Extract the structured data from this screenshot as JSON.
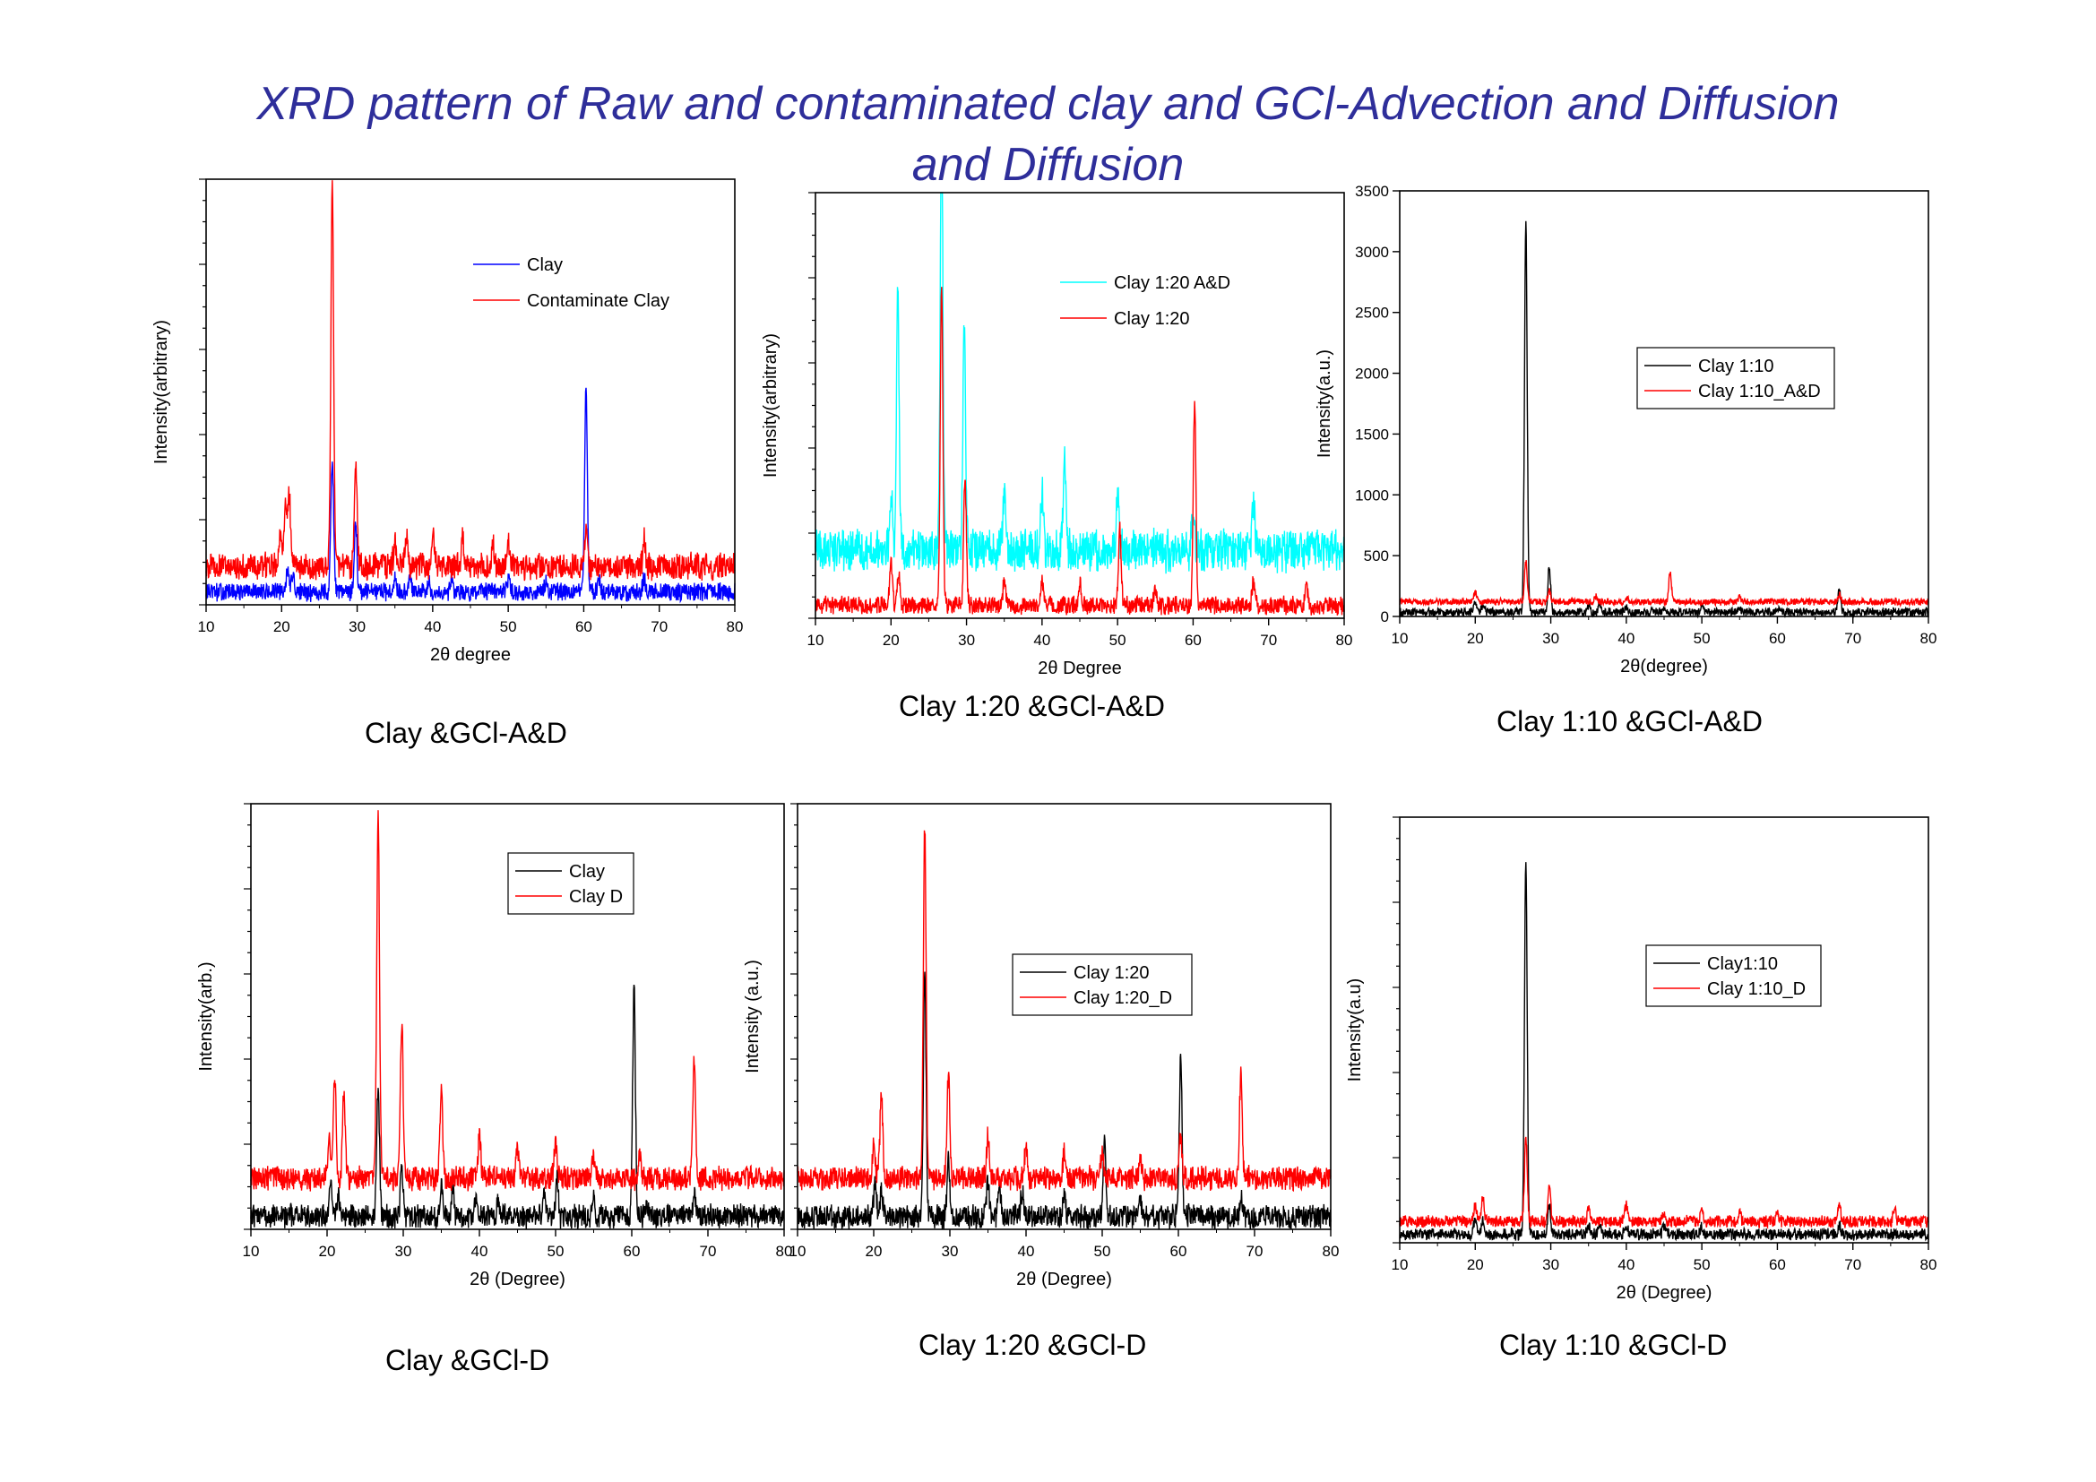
{
  "page": {
    "title_line1": "XRD  pattern of  Raw and contaminated clay and GCl-Advection and Diffusion",
    "title_line2": "and Diffusion"
  },
  "captions": {
    "c1": "Clay &GCl-A&D",
    "c2": "Clay 1:20 &GCl-A&D",
    "c3": "Clay 1:10 &GCl-A&D",
    "c4": "Clay &GCl-D",
    "c5": "Clay 1:20 &GCl-D",
    "c6": "Clay 1:10 &GCl-D"
  },
  "chart_data": [
    {
      "type": "line",
      "xlabel": "2θ degree",
      "ylabel": "Intensity(arbitrary)",
      "xlim": [
        10,
        80
      ],
      "xticks": [
        "10",
        "20",
        "30",
        "40",
        "50",
        "60",
        "70",
        "80"
      ],
      "ylim": [
        0,
        100
      ],
      "yticks_labeled": false,
      "legend_placement": "top-center",
      "legend_box": false,
      "series": [
        {
          "name": "Clay",
          "color": "#0000ff",
          "baseline": 3,
          "noise": 1.5,
          "peaks": [
            [
              20.8,
              6
            ],
            [
              21.5,
              4
            ],
            [
              26.7,
              32
            ],
            [
              29.8,
              16
            ],
            [
              35,
              4
            ],
            [
              37,
              3
            ],
            [
              39.5,
              3
            ],
            [
              42.5,
              3
            ],
            [
              50,
              3
            ],
            [
              55,
              2
            ],
            [
              60.3,
              47
            ],
            [
              62,
              3
            ],
            [
              68,
              3
            ]
          ]
        },
        {
          "name": "Contaminate Clay",
          "color": "#ff0000",
          "baseline": 9,
          "noise": 2.2,
          "peaks": [
            [
              19.8,
              8
            ],
            [
              20.5,
              15
            ],
            [
              21,
              17
            ],
            [
              26.7,
              92
            ],
            [
              29.8,
              25
            ],
            [
              35,
              6
            ],
            [
              36.5,
              7
            ],
            [
              40,
              8
            ],
            [
              44,
              6
            ],
            [
              48,
              5
            ],
            [
              50,
              6
            ],
            [
              60.3,
              8
            ],
            [
              68,
              6
            ]
          ]
        }
      ]
    },
    {
      "type": "line",
      "xlabel": "2θ Degree",
      "ylabel": "Intensity(arbitrary)",
      "xlim": [
        10,
        80
      ],
      "xticks": [
        "10",
        "20",
        "30",
        "40",
        "50",
        "60",
        "70",
        "80"
      ],
      "ylim": [
        0,
        100
      ],
      "yticks_labeled": false,
      "legend_placement": "top-center",
      "legend_box": false,
      "series": [
        {
          "name": "Clay 1:20 A&D",
          "color": "#00ffff",
          "baseline": 16,
          "noise": 3.5,
          "peaks": [
            [
              20,
              14
            ],
            [
              20.9,
              60
            ],
            [
              26.7,
              98
            ],
            [
              29.7,
              52
            ],
            [
              35,
              14
            ],
            [
              40,
              14
            ],
            [
              43,
              20
            ],
            [
              50,
              12
            ],
            [
              60,
              10
            ],
            [
              68,
              10
            ]
          ]
        },
        {
          "name": "Clay 1:20",
          "color": "#ff0000",
          "baseline": 3,
          "noise": 1.5,
          "peaks": [
            [
              20,
              10
            ],
            [
              21,
              8
            ],
            [
              26.7,
              74
            ],
            [
              29.8,
              30
            ],
            [
              35,
              6
            ],
            [
              40,
              6
            ],
            [
              45,
              5
            ],
            [
              50.3,
              18
            ],
            [
              55,
              4
            ],
            [
              60.2,
              48
            ],
            [
              68,
              6
            ],
            [
              75,
              4
            ]
          ]
        }
      ]
    },
    {
      "type": "line",
      "xlabel": "2θ(degree)",
      "ylabel": "Intensity(a.u.)",
      "xlim": [
        10,
        80
      ],
      "xticks": [
        "10",
        "20",
        "30",
        "40",
        "50",
        "60",
        "70",
        "80"
      ],
      "ylim": [
        0,
        3500
      ],
      "yticks": [
        0,
        500,
        1000,
        1500,
        2000,
        2500,
        3000,
        3500
      ],
      "yticks_labeled": true,
      "legend_placement": "top-right",
      "legend_box": true,
      "series": [
        {
          "name": "Clay 1:10",
          "color": "#000000",
          "baseline": 35,
          "noise": 25,
          "peaks": [
            [
              20,
              90
            ],
            [
              21,
              60
            ],
            [
              26.7,
              3190
            ],
            [
              29.8,
              370
            ],
            [
              35,
              60
            ],
            [
              36.5,
              70
            ],
            [
              40,
              50
            ],
            [
              45,
              40
            ],
            [
              50,
              40
            ],
            [
              55,
              40
            ],
            [
              60,
              40
            ],
            [
              68.2,
              180
            ]
          ]
        },
        {
          "name": "Clay 1:10_A&D",
          "color": "#ff0000",
          "baseline": 120,
          "noise": 20,
          "peaks": [
            [
              20,
              80
            ],
            [
              26.7,
              340
            ],
            [
              29.8,
              100
            ],
            [
              36,
              40
            ],
            [
              40,
              40
            ],
            [
              45.8,
              240
            ],
            [
              55,
              40
            ],
            [
              68.2,
              60
            ]
          ]
        }
      ]
    },
    {
      "type": "line",
      "xlabel": "2θ (Degree)",
      "ylabel": "Intensity(arb.)",
      "xlim": [
        10,
        80
      ],
      "xticks": [
        "10",
        "20",
        "30",
        "40",
        "50",
        "60",
        "70",
        "80"
      ],
      "ylim": [
        0,
        100
      ],
      "yticks_labeled": false,
      "legend_placement": "top-center",
      "legend_box": true,
      "series": [
        {
          "name": "Clay",
          "color": "#000000",
          "baseline": 3,
          "noise": 2,
          "peaks": [
            [
              20.5,
              9
            ],
            [
              21.5,
              5
            ],
            [
              26.7,
              31
            ],
            [
              29.8,
              12
            ],
            [
              35,
              7
            ],
            [
              36.5,
              6
            ],
            [
              39.5,
              5
            ],
            [
              42.5,
              4
            ],
            [
              48.5,
              5
            ],
            [
              50.2,
              8
            ],
            [
              55,
              4
            ],
            [
              60.3,
              54
            ],
            [
              62,
              3
            ],
            [
              68.2,
              5
            ]
          ]
        },
        {
          "name": "Clay D",
          "color": "#ff0000",
          "baseline": 12,
          "noise": 2,
          "peaks": [
            [
              20.3,
              8
            ],
            [
              21,
              24
            ],
            [
              22.2,
              20
            ],
            [
              26.7,
              86
            ],
            [
              29.8,
              37
            ],
            [
              35,
              20
            ],
            [
              40,
              10
            ],
            [
              45,
              7
            ],
            [
              50,
              8
            ],
            [
              55,
              6
            ],
            [
              61,
              5
            ],
            [
              68.2,
              28
            ]
          ]
        }
      ]
    },
    {
      "type": "line",
      "xlabel": "2θ (Degree)",
      "ylabel": "Intensity (a.u.)",
      "xlim": [
        10,
        80
      ],
      "xticks": [
        "10",
        "20",
        "30",
        "40",
        "50",
        "60",
        "70",
        "80"
      ],
      "ylim": [
        0,
        100
      ],
      "yticks_labeled": false,
      "legend_placement": "top-center",
      "legend_box": true,
      "series": [
        {
          "name": "Clay 1:20",
          "color": "#000000",
          "baseline": 3,
          "noise": 2,
          "peaks": [
            [
              20.2,
              8
            ],
            [
              21,
              6
            ],
            [
              26.7,
              56
            ],
            [
              29.8,
              14
            ],
            [
              35,
              8
            ],
            [
              36.5,
              7
            ],
            [
              39.5,
              6
            ],
            [
              45,
              5
            ],
            [
              50.3,
              19
            ],
            [
              55,
              5
            ],
            [
              60.3,
              38
            ],
            [
              68.2,
              5
            ]
          ]
        },
        {
          "name": "Clay 1:20_D",
          "color": "#ff0000",
          "baseline": 12,
          "noise": 2,
          "peaks": [
            [
              20,
              8
            ],
            [
              21,
              20
            ],
            [
              26.7,
              83
            ],
            [
              29.8,
              25
            ],
            [
              35,
              10
            ],
            [
              40,
              8
            ],
            [
              45,
              6
            ],
            [
              50,
              6
            ],
            [
              55,
              5
            ],
            [
              60.3,
              10
            ],
            [
              68.2,
              24
            ]
          ]
        }
      ]
    },
    {
      "type": "line",
      "xlabel": "2θ (Degree)",
      "ylabel": "Intensity(a.u)",
      "xlim": [
        10,
        80
      ],
      "xticks": [
        "10",
        "20",
        "30",
        "40",
        "50",
        "60",
        "70",
        "80"
      ],
      "ylim": [
        0,
        100
      ],
      "yticks_labeled": false,
      "legend_placement": "top-right",
      "legend_box": true,
      "series": [
        {
          "name": "Clay1:10",
          "color": "#000000",
          "baseline": 2,
          "noise": 1,
          "peaks": [
            [
              20,
              4
            ],
            [
              21,
              3
            ],
            [
              26.7,
              88
            ],
            [
              29.8,
              7
            ],
            [
              35,
              2
            ],
            [
              36.5,
              3
            ],
            [
              40,
              2
            ],
            [
              45,
              2
            ],
            [
              50,
              2
            ],
            [
              68.2,
              2
            ]
          ]
        },
        {
          "name": "Clay 1:10_D",
          "color": "#ff0000",
          "baseline": 5,
          "noise": 1,
          "peaks": [
            [
              20,
              4
            ],
            [
              21,
              6
            ],
            [
              26.7,
              20
            ],
            [
              29.8,
              8
            ],
            [
              35,
              3
            ],
            [
              40,
              4
            ],
            [
              45,
              2
            ],
            [
              50,
              3
            ],
            [
              55,
              2
            ],
            [
              60,
              2
            ],
            [
              68.2,
              4
            ],
            [
              75.5,
              3
            ]
          ]
        }
      ]
    }
  ]
}
